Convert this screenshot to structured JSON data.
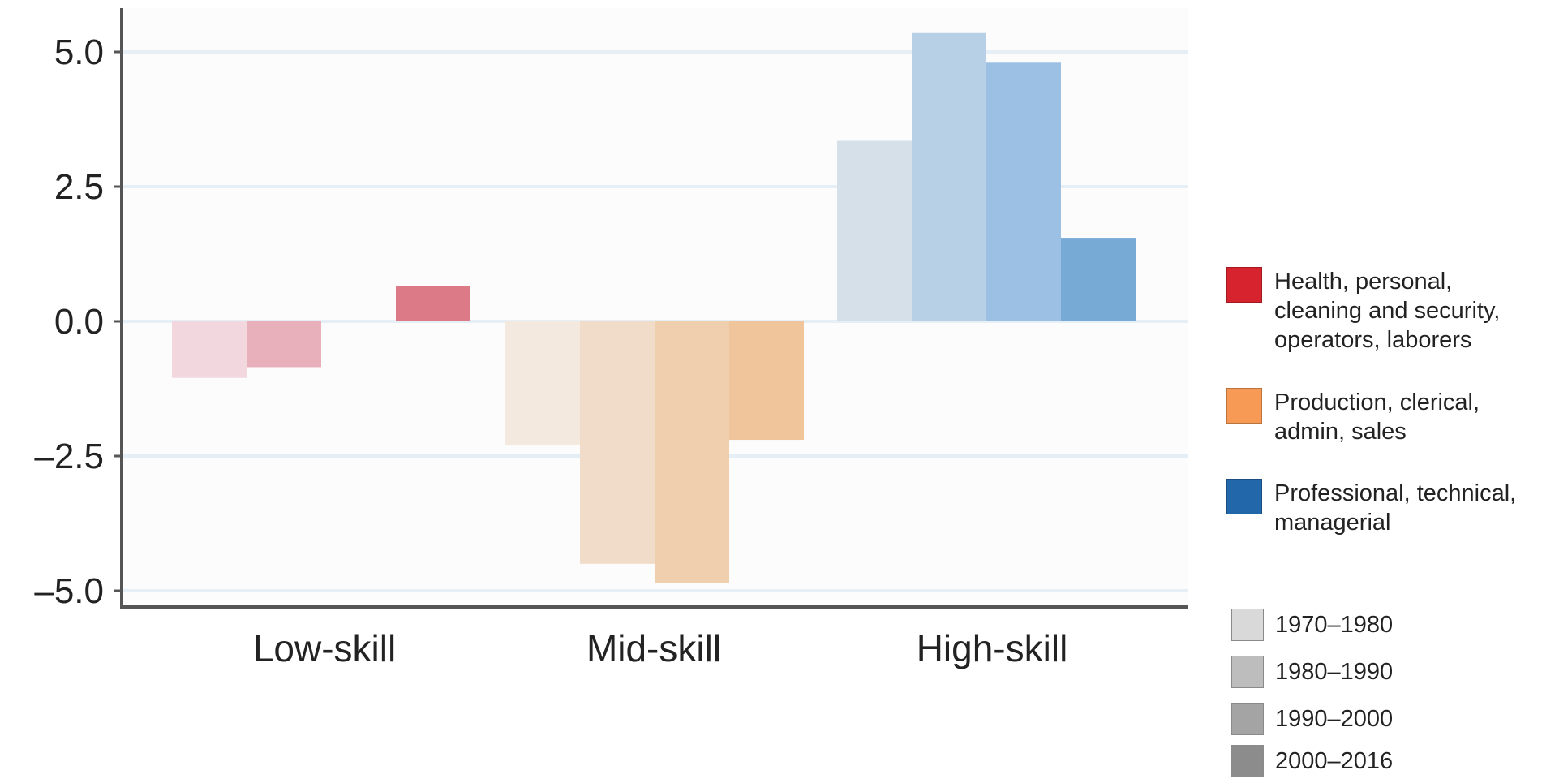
{
  "chart_data": {
    "type": "bar",
    "categories": [
      "Low-skill",
      "Mid-skill",
      "High-skill"
    ],
    "periods": [
      "1970–1980",
      "1980–1990",
      "1990–2000",
      "2000–2016"
    ],
    "series": [
      {
        "name": "1970–1980",
        "values": [
          -1.05,
          -2.3,
          3.35
        ]
      },
      {
        "name": "1980–1990",
        "values": [
          -0.85,
          -4.5,
          5.35
        ]
      },
      {
        "name": "1990–2000",
        "values": [
          0.0,
          -4.85,
          4.8
        ]
      },
      {
        "name": "2000–2016",
        "values": [
          0.65,
          -2.2,
          1.55
        ]
      }
    ],
    "ylim": [
      -5.3,
      5.8
    ],
    "y_ticks": [
      "5.0",
      "2.5",
      "0.0",
      "–2.5",
      "–5.0"
    ],
    "y_tick_values": [
      5.0,
      2.5,
      0.0,
      -2.5,
      -5.0
    ],
    "grid": true,
    "xlabel": "",
    "ylabel": "",
    "title": "",
    "legend_position": "right",
    "bar_colors": [
      [
        "#f2d8de",
        "#e8b0ba",
        "#e398a5",
        "#dc7a87"
      ],
      [
        "#f4e9df",
        "#f0dcc8",
        "#efcfad",
        "#f0c59b"
      ],
      [
        "#d6e0e9",
        "#b8d0e6",
        "#9bc0e3",
        "#77abd6"
      ]
    ]
  },
  "legend": {
    "categories": [
      {
        "label": "Health, personal, cleaning and security, operators, laborers",
        "color": "#d7232e"
      },
      {
        "label": "Production, clerical, admin, sales",
        "color": "#f79a55"
      },
      {
        "label": "Professional, technical, managerial",
        "color": "#2267aa"
      }
    ],
    "periods": [
      {
        "label": "1970–1980",
        "color": "#d9d9d9"
      },
      {
        "label": "1980–1990",
        "color": "#bdbdbd"
      },
      {
        "label": "1990–2000",
        "color": "#a4a4a4"
      },
      {
        "label": "2000–2016",
        "color": "#8c8c8c"
      }
    ]
  }
}
